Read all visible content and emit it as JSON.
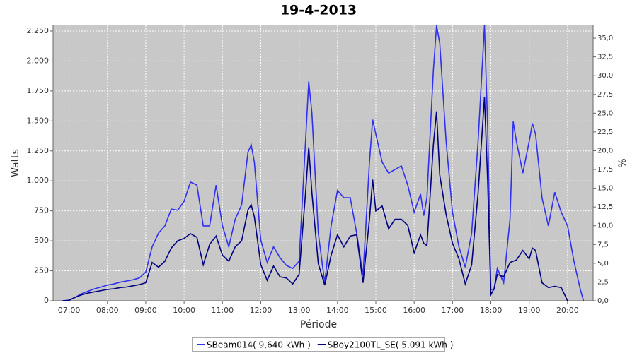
{
  "chart_data": {
    "type": "line",
    "title": "19-4-2013",
    "x_label": "Période",
    "y_label": "Watts",
    "y2_label": "%",
    "x": [
      "06:50",
      "07:00",
      "07:10",
      "07:20",
      "07:30",
      "07:40",
      "07:50",
      "08:00",
      "08:10",
      "08:20",
      "08:30",
      "08:40",
      "08:50",
      "09:00",
      "09:10",
      "09:20",
      "09:30",
      "09:40",
      "09:50",
      "10:00",
      "10:10",
      "10:20",
      "10:30",
      "10:40",
      "10:50",
      "11:00",
      "11:10",
      "11:20",
      "11:30",
      "11:40",
      "11:45",
      "11:50",
      "12:00",
      "12:10",
      "12:20",
      "12:30",
      "12:40",
      "12:50",
      "13:00",
      "13:10",
      "13:15",
      "13:20",
      "13:30",
      "13:40",
      "13:50",
      "14:00",
      "14:10",
      "14:20",
      "14:30",
      "14:40",
      "14:50",
      "14:55",
      "15:00",
      "15:10",
      "15:20",
      "15:30",
      "15:40",
      "15:50",
      "16:00",
      "16:10",
      "16:15",
      "16:20",
      "16:30",
      "16:35",
      "16:40",
      "16:50",
      "17:00",
      "17:10",
      "17:20",
      "17:30",
      "17:40",
      "17:50",
      "17:55",
      "18:00",
      "18:05",
      "18:10",
      "18:20",
      "18:30",
      "18:35",
      "18:40",
      "18:50",
      "19:00",
      "19:05",
      "19:10",
      "19:20",
      "19:30",
      "19:40",
      "19:50",
      "20:00",
      "20:10",
      "20:20",
      "20:25"
    ],
    "series": [
      {
        "name": "SBeam014( 9,640 kWh )",
        "color": "#3030f0",
        "values": [
          0,
          5,
          30,
          60,
          80,
          100,
          115,
          130,
          140,
          155,
          165,
          175,
          190,
          240,
          450,
          565,
          625,
          765,
          755,
          830,
          990,
          965,
          625,
          625,
          965,
          625,
          450,
          680,
          800,
          1240,
          1300,
          1155,
          505,
          320,
          450,
          360,
          295,
          270,
          330,
          1330,
          1830,
          1565,
          565,
          150,
          625,
          920,
          860,
          860,
          565,
          210,
          1155,
          1510,
          1390,
          1155,
          1065,
          1095,
          1125,
          965,
          740,
          890,
          710,
          860,
          1920,
          2297,
          2150,
          1330,
          740,
          450,
          280,
          565,
          1330,
          2297,
          1450,
          95,
          95,
          270,
          150,
          680,
          1495,
          1330,
          1065,
          1330,
          1480,
          1390,
          860,
          625,
          905,
          740,
          625,
          330,
          95,
          0
        ]
      },
      {
        "name": "SBoy2100TL_SE( 5,091 kWh )",
        "color": "#000080",
        "values": [
          0,
          5,
          30,
          50,
          65,
          75,
          85,
          95,
          100,
          110,
          115,
          125,
          135,
          150,
          320,
          280,
          330,
          440,
          500,
          520,
          560,
          530,
          300,
          470,
          540,
          380,
          330,
          450,
          500,
          760,
          800,
          700,
          300,
          170,
          290,
          200,
          190,
          140,
          220,
          900,
          1280,
          900,
          310,
          130,
          380,
          550,
          450,
          540,
          550,
          150,
          680,
          1010,
          750,
          790,
          600,
          680,
          680,
          630,
          400,
          550,
          480,
          460,
          1300,
          1580,
          1050,
          720,
          480,
          350,
          140,
          300,
          900,
          1700,
          1000,
          50,
          100,
          220,
          200,
          320,
          330,
          340,
          420,
          350,
          440,
          420,
          150,
          110,
          120,
          110,
          0,
          null,
          null,
          null
        ]
      }
    ],
    "xlim": [
      "06:35",
      "20:40"
    ],
    "xticks": [
      "07:00",
      "08:00",
      "09:00",
      "10:00",
      "11:00",
      "12:00",
      "13:00",
      "14:00",
      "15:00",
      "16:00",
      "17:00",
      "18:00",
      "19:00",
      "20:00"
    ],
    "ylim": [
      0,
      2297
    ],
    "yticks": [
      0,
      250,
      500,
      750,
      {
        "value": 1000,
        "label": "1.000"
      },
      {
        "value": 1250,
        "label": "1.250"
      },
      {
        "value": 1500,
        "label": "1.500"
      },
      {
        "value": 1750,
        "label": "1.750"
      },
      {
        "value": 2000,
        "label": "2.000"
      },
      {
        "value": 2250,
        "label": "2.250"
      }
    ],
    "y2lim": [
      0,
      36.7
    ],
    "y2ticks": [
      {
        "value": 0,
        "label": "0,0"
      },
      {
        "value": 2.5,
        "label": "2,5"
      },
      {
        "value": 5,
        "label": "5,0"
      },
      {
        "value": 7.5,
        "label": "7,5"
      },
      {
        "value": 10,
        "label": "10,0"
      },
      {
        "value": 12.5,
        "label": "12,5"
      },
      {
        "value": 15,
        "label": "15,0"
      },
      {
        "value": 17.5,
        "label": "17,5"
      },
      {
        "value": 20,
        "label": "20,0"
      },
      {
        "value": 22.5,
        "label": "22,5"
      },
      {
        "value": 25,
        "label": "25,0"
      },
      {
        "value": 27.5,
        "label": "27,5"
      },
      {
        "value": 30,
        "label": "30,0"
      },
      {
        "value": 32.5,
        "label": "32,5"
      },
      {
        "value": 35,
        "label": "35,0"
      }
    ],
    "grid": true,
    "legend": "bottom"
  }
}
